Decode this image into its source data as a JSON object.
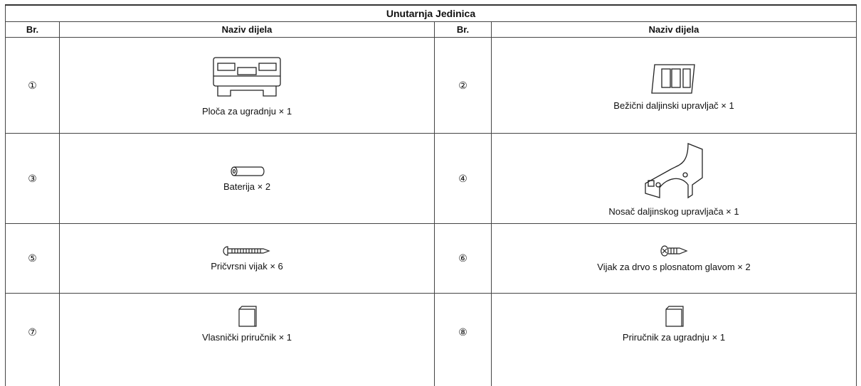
{
  "table": {
    "title": "Unutarnja Jedinica",
    "headers": [
      "Br.",
      "Naziv dijela",
      "Br.",
      "Naziv dijela"
    ],
    "rows": [
      [
        "①",
        "Ploča za ugradnju × 1",
        "②",
        "Bežični daljinski upravljač × 1"
      ],
      [
        "③",
        "Baterija × 2",
        "④",
        "Nosač daljinskog upravljača × 1"
      ],
      [
        "⑤",
        "Pričvrsni vijak × 6",
        "⑥",
        "Vijak za drvo s plosnatom glavom × 2"
      ],
      [
        "⑦",
        "Vlasnički priručnik × 1",
        "⑧",
        "Priručnik za ugradnju × 1"
      ]
    ]
  }
}
